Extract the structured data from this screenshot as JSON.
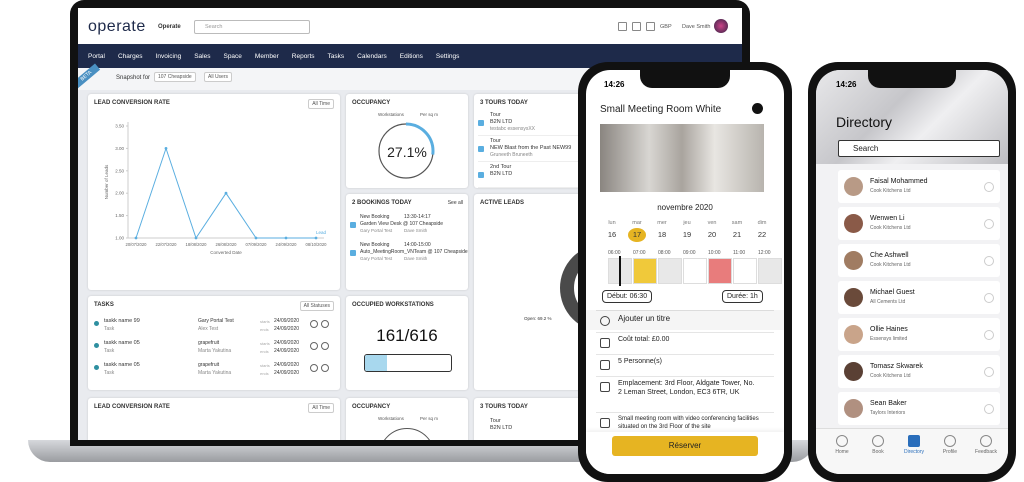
{
  "app": {
    "logo": "operate",
    "menu": "Operate",
    "search": "Search",
    "currency": "GBP",
    "user": "Dave Smith"
  },
  "nav": [
    "Portal",
    "Charges",
    "Invoicing",
    "Sales",
    "Space",
    "Member",
    "Reports",
    "Tasks",
    "Calendars",
    "Editions",
    "Settings"
  ],
  "toolbar": {
    "badge": "BETA",
    "label": "Snapshot for",
    "location": "107 Cheapside",
    "users": "All Users"
  },
  "lead_chart": {
    "title": "LEAD CONVERSION RATE",
    "filter": "All Time",
    "y_label": "Number of Leads",
    "x_label": "Converted Date",
    "legend": "Lead",
    "x": [
      "20/07/2020",
      "22/07/2020",
      "18/08/2020",
      "26/08/2020",
      "07/09/2020",
      "24/09/2020",
      "08/10/2020"
    ],
    "values": [
      1,
      3,
      1,
      2,
      1,
      1,
      1
    ],
    "ylim": [
      1,
      3.5
    ],
    "yticks": [
      {
        "value": 1,
        "label": "1.00"
      },
      {
        "value": 1.5,
        "label": "1.50"
      },
      {
        "value": 2,
        "label": "2.00"
      },
      {
        "value": 2.5,
        "label": "2.50"
      },
      {
        "value": 3,
        "label": "3.00"
      },
      {
        "value": 3.5,
        "label": "3.50"
      }
    ],
    "color": "#5aaee0"
  },
  "occupancy": {
    "title": "OCCUPANCY",
    "caption": "Workstations",
    "unit": "Per sq m",
    "value": 27.1,
    "value_label": "27.1%"
  },
  "tours": {
    "title": "3 TOURS TODAY",
    "items": [
      {
        "type": "Tour",
        "company": "B2N LTD",
        "person": "testabc essensysXX"
      },
      {
        "type": "Tour",
        "company": "NEW Blast from the Past NEW99",
        "person": "Gruneeth Bruneeth"
      },
      {
        "type": "2nd Tour",
        "company": "B2N LTD"
      }
    ]
  },
  "bookings": {
    "title": "2 BOOKINGS TODAY",
    "see_all": "See all",
    "items": [
      {
        "name": "New Booking",
        "time": "13:30-14:17",
        "place": "Garden View Desk @ 107 Cheapside",
        "person1": "Gary Portal Test",
        "person2": "Dave Smith"
      },
      {
        "name": "New Booking",
        "time": "14:00-15:00",
        "place": "Auto_MeetingRoom_VNTeam @ 107 Cheapside",
        "person1": "Gary Portal Test",
        "person2": "Dave Smith"
      }
    ]
  },
  "active_leads": {
    "title": "ACTIVE LEADS",
    "label": "Open: 69.2 %"
  },
  "tasks": {
    "title": "TASKS",
    "filter": "All Statuses",
    "start_label": "starts",
    "end_label": "ends",
    "items": [
      {
        "name": "taskk name 99",
        "type": "Task",
        "owner": "Gary Portal Test",
        "assignee": "Alex Test",
        "start": "24/09/2020",
        "end": "24/09/2020"
      },
      {
        "name": "taskk name 05",
        "type": "Task",
        "owner": "grapefruit",
        "assignee": "Marta Yakutina",
        "start": "24/09/2020",
        "end": "24/09/2020"
      },
      {
        "name": "taskk name 05",
        "type": "Task",
        "owner": "grapefruit",
        "assignee": "Marta Yakutina",
        "start": "24/09/2020",
        "end": "24/09/2020"
      }
    ]
  },
  "workstations": {
    "title": "OCCUPIED WORKSTATIONS",
    "occupied": 161,
    "total": 616,
    "label": "161/616"
  },
  "row3": {
    "lead_title": "LEAD CONVERSION RATE",
    "lead_filter": "All Time",
    "occ_title": "OCCUPANCY",
    "occ_caption": "Workstations",
    "occ_unit": "Per sq m",
    "tours_title": "3 TOURS TODAY",
    "tour_type": "Tour",
    "tour_company": "B2N LTD"
  },
  "booking_app": {
    "time": "14:26",
    "title": "Small Meeting Room White",
    "month": "novembre 2020",
    "days": [
      {
        "day": "lun",
        "date": "16"
      },
      {
        "day": "mar",
        "date": "17"
      },
      {
        "day": "mer",
        "date": "18"
      },
      {
        "day": "jeu",
        "date": "19"
      },
      {
        "day": "ven",
        "date": "20"
      },
      {
        "day": "sam",
        "date": "21"
      },
      {
        "day": "dim",
        "date": "22"
      }
    ],
    "hours": [
      "06:00",
      "07:00",
      "08:00",
      "09:00",
      "10:00",
      "11:00",
      "12:00"
    ],
    "start": "Début: 06:30",
    "duration": "Durée: 1h",
    "add_title": "Ajouter un titre",
    "cost": "Coût total: £0.00",
    "people": "5 Personne(s)",
    "location": "Emplacement: 3rd Floor, Aldgate Tower, No. 2 Leman Street, London, EC3 6TR, UK",
    "description": "Small meeting room with video conferencing facilities situated on the 3rd Floor of the site",
    "button": "Réserver"
  },
  "directory_app": {
    "time": "14:26",
    "title": "Directory",
    "search": "Search",
    "people": [
      {
        "name": "Faisal Mohammed",
        "company": "Cook Kitchens Ltd"
      },
      {
        "name": "Wenwen Li",
        "company": "Cook Kitchens Ltd"
      },
      {
        "name": "Che Ashwell",
        "company": "Cook Kitchens Ltd"
      },
      {
        "name": "Michael Guest",
        "company": "All Cements Ltd"
      },
      {
        "name": "Ollie Haines",
        "company": "Essensys limited"
      },
      {
        "name": "Tomasz Skwarek",
        "company": "Cook Kitchens Ltd"
      },
      {
        "name": "Sean Baker",
        "company": "Taylors Interiors"
      }
    ],
    "tabs": [
      "Home",
      "Book",
      "Directory",
      "Profile",
      "Feedback"
    ]
  }
}
